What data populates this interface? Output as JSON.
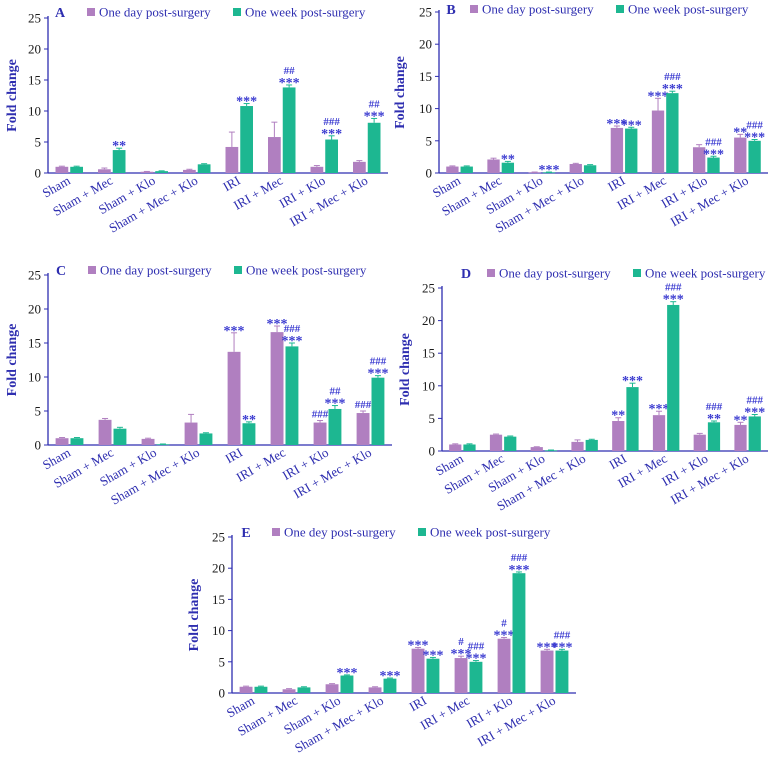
{
  "colors": {
    "day": "#b07fc0",
    "week": "#1db791",
    "axis": "#2e2eb0",
    "sig": "#3a3ad0",
    "tick": "#1a1a1a"
  },
  "chart_data": [
    {
      "type": "bar",
      "panel": "A",
      "ylabel": "Fold change",
      "ylim": [
        0,
        25
      ],
      "yticks": [
        0,
        5,
        10,
        15,
        20,
        25
      ],
      "categories": [
        "Sham",
        "Sham + Mec",
        "Sham + Klo",
        "Sham + Mec + Klo",
        "IRI",
        "IRI + Mec",
        "IRI + Klo",
        "IRI + Mec + Klo"
      ],
      "series": [
        {
          "name": "One day post-surgery",
          "values": [
            1.0,
            0.6,
            0.2,
            0.5,
            4.2,
            5.8,
            1.0,
            1.8
          ],
          "errors": [
            0.1,
            0.2,
            0.05,
            0.1,
            2.4,
            2.4,
            0.2,
            0.2
          ],
          "annotations": [
            "",
            "",
            "",
            "",
            "",
            "",
            "",
            ""
          ]
        },
        {
          "name": "One week post-surgery",
          "values": [
            1.0,
            3.7,
            0.3,
            1.4,
            10.8,
            13.8,
            5.4,
            8.1
          ],
          "errors": [
            0.1,
            0.3,
            0.05,
            0.1,
            0.4,
            0.4,
            0.6,
            0.7
          ],
          "annotations": [
            "",
            "**",
            "",
            "",
            "***",
            "##\n***",
            "###\n***",
            "##\n***"
          ]
        }
      ]
    },
    {
      "type": "bar",
      "panel": "B",
      "ylabel": "Fold change",
      "ylim": [
        0,
        25
      ],
      "yticks": [
        0,
        5,
        10,
        15,
        20,
        25
      ],
      "categories": [
        "Sham",
        "Sham + Mec",
        "Sham + Klo",
        "Sham + Mec + Klo",
        "IRI",
        "IRI + Mec",
        "IRI + Klo",
        "IRI + Mec + Klo"
      ],
      "series": [
        {
          "name": "One day post-surgery",
          "values": [
            1.0,
            2.1,
            0.1,
            1.4,
            7.0,
            9.7,
            4.0,
            5.5
          ],
          "errors": [
            0.1,
            0.2,
            0.05,
            0.1,
            0.3,
            1.9,
            0.4,
            0.5
          ],
          "annotations": [
            "",
            "",
            "",
            "",
            "***",
            "***",
            "",
            "**"
          ]
        },
        {
          "name": "One week post-surgery",
          "values": [
            1.0,
            1.6,
            0.1,
            1.2,
            6.9,
            12.4,
            2.4,
            5.0
          ],
          "errors": [
            0.1,
            0.2,
            0.05,
            0.1,
            0.2,
            0.3,
            0.2,
            0.2
          ],
          "annotations": [
            "",
            "**",
            "***",
            "",
            "***",
            "###\n***",
            "###\n***",
            "###\n***"
          ]
        }
      ]
    },
    {
      "type": "bar",
      "panel": "C",
      "ylabel": "Fold change",
      "ylim": [
        0,
        25
      ],
      "yticks": [
        0,
        5,
        10,
        15,
        20,
        25
      ],
      "categories": [
        "Sham",
        "Sham + Mec",
        "Sham + Klo",
        "Sham + Mec + Klo",
        "IRI",
        "IRI + Mec",
        "IRI + Klo",
        "IRI + Mec + Klo"
      ],
      "series": [
        {
          "name": "One day post-surgery",
          "values": [
            1.0,
            3.7,
            0.9,
            3.3,
            13.7,
            16.6,
            3.3,
            4.7
          ],
          "errors": [
            0.1,
            0.2,
            0.1,
            1.2,
            2.8,
            0.9,
            0.3,
            0.3
          ],
          "annotations": [
            "",
            "",
            "",
            "",
            "***",
            "***",
            "###",
            "###"
          ]
        },
        {
          "name": "One week post-surgery",
          "values": [
            1.0,
            2.4,
            0.1,
            1.7,
            3.2,
            14.5,
            5.3,
            9.9
          ],
          "errors": [
            0.1,
            0.2,
            0.05,
            0.1,
            0.2,
            0.5,
            0.5,
            0.3
          ],
          "annotations": [
            "",
            "",
            "",
            "",
            "**",
            "###\n***",
            "##\n***",
            "###\n***"
          ]
        }
      ]
    },
    {
      "type": "bar",
      "panel": "D",
      "ylabel": "Fold change",
      "ylim": [
        0,
        25
      ],
      "yticks": [
        0,
        5,
        10,
        15,
        20,
        25
      ],
      "categories": [
        "Sham",
        "Sham + Mec",
        "Sham + Klo",
        "Sham + Mec + Klo",
        "IRI",
        "IRI + Mec",
        "IRI + Klo",
        "IRI + Mec + Klo"
      ],
      "series": [
        {
          "name": "One day post-surgery",
          "values": [
            1.0,
            2.5,
            0.6,
            1.4,
            4.6,
            5.5,
            2.5,
            4.0
          ],
          "errors": [
            0.1,
            0.1,
            0.05,
            0.3,
            0.5,
            0.6,
            0.2,
            0.4
          ],
          "annotations": [
            "",
            "",
            "",
            "",
            "**",
            "***",
            "",
            "**"
          ]
        },
        {
          "name": "One week post-surgery",
          "values": [
            1.0,
            2.2,
            0.1,
            1.7,
            9.8,
            22.4,
            4.4,
            5.3
          ],
          "errors": [
            0.1,
            0.1,
            0.05,
            0.1,
            0.6,
            0.5,
            0.2,
            0.3
          ],
          "annotations": [
            "",
            "",
            "",
            "",
            "***",
            "###\n***",
            "###\n**",
            "###\n***"
          ]
        }
      ]
    },
    {
      "type": "bar",
      "panel": "E",
      "ylabel": "Fold change",
      "ylim": [
        0,
        25
      ],
      "yticks": [
        0,
        5,
        10,
        15,
        20,
        25
      ],
      "categories": [
        "Sham",
        "Sham + Mec",
        "Sham + Klo",
        "Sham + Mec + Klo",
        "IRI",
        "IRI + Mec",
        "IRI + Klo",
        "IRI + Mec + Klo"
      ],
      "series": [
        {
          "name": "One dey post-surgery",
          "values": [
            1.0,
            0.6,
            1.4,
            0.9,
            7.1,
            5.6,
            8.7,
            6.8
          ],
          "errors": [
            0.1,
            0.1,
            0.1,
            0.1,
            0.2,
            0.3,
            0.2,
            0.2
          ],
          "annotations": [
            "",
            "",
            "",
            "",
            "***",
            "#\n***",
            "#\n***",
            "***"
          ]
        },
        {
          "name": "One week post-surgery",
          "values": [
            1.0,
            0.9,
            2.8,
            2.3,
            5.5,
            5.0,
            19.2,
            6.8
          ],
          "errors": [
            0.1,
            0.1,
            0.1,
            0.1,
            0.2,
            0.2,
            0.2,
            0.2
          ],
          "annotations": [
            "",
            "",
            "***",
            "***",
            "***",
            "###\n***",
            "###\n***",
            "###\n***"
          ]
        }
      ]
    }
  ]
}
